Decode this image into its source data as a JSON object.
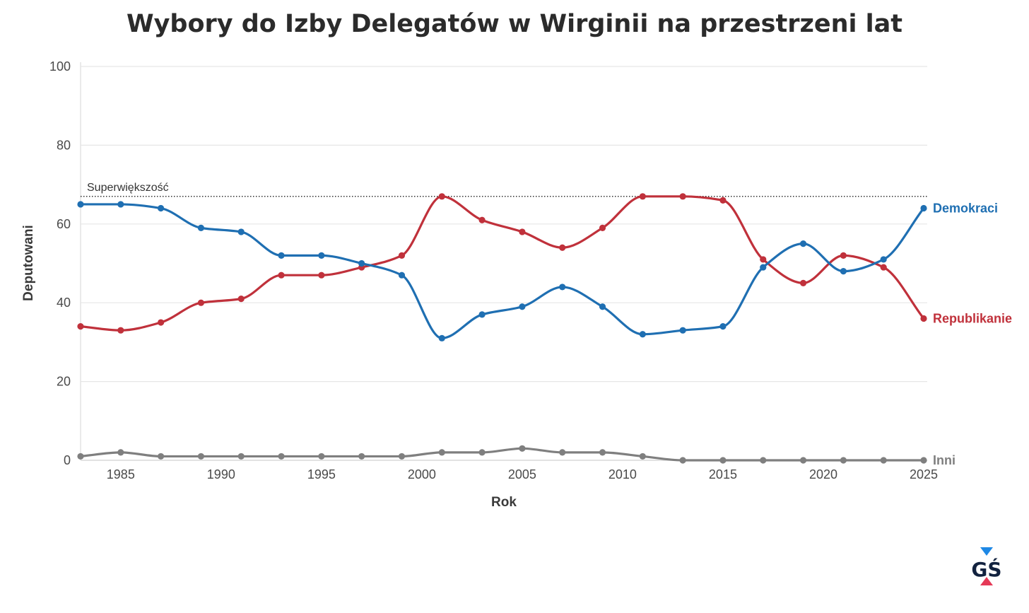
{
  "chart_data": {
    "type": "line",
    "title": "Wybory do Izby Delegatów w Wirginii na przestrzeni lat",
    "xlabel": "Rok",
    "ylabel": "Deputowani",
    "xlim": [
      1983,
      2025
    ],
    "ylim": [
      0,
      100
    ],
    "xticks": [
      1985,
      1990,
      1995,
      2000,
      2005,
      2010,
      2015,
      2020,
      2025
    ],
    "yticks": [
      0,
      20,
      40,
      60,
      80,
      100
    ],
    "grid": true,
    "x": [
      1983,
      1985,
      1987,
      1989,
      1991,
      1993,
      1995,
      1997,
      1999,
      2001,
      2003,
      2005,
      2007,
      2009,
      2011,
      2013,
      2015,
      2017,
      2019,
      2021,
      2023,
      2025
    ],
    "series": [
      {
        "name": "Demokraci",
        "color": "#1f6fb2",
        "values": [
          65,
          65,
          64,
          59,
          58,
          52,
          52,
          50,
          47,
          31,
          37,
          39,
          44,
          39,
          32,
          33,
          34,
          49,
          55,
          48,
          51,
          64
        ]
      },
      {
        "name": "Republikanie",
        "color": "#c0313b",
        "values": [
          34,
          33,
          35,
          40,
          41,
          47,
          47,
          49,
          52,
          67,
          61,
          58,
          54,
          59,
          67,
          67,
          66,
          51,
          45,
          52,
          49,
          36
        ]
      },
      {
        "name": "Inni",
        "color": "#7f7f7f",
        "values": [
          1,
          2,
          1,
          1,
          1,
          1,
          1,
          1,
          1,
          2,
          2,
          3,
          2,
          2,
          1,
          0,
          0,
          0,
          0,
          0,
          0,
          0
        ]
      }
    ],
    "reference_line": {
      "label": "Superwiększość",
      "value": 67
    }
  },
  "logo": {
    "text": "GŚ"
  }
}
